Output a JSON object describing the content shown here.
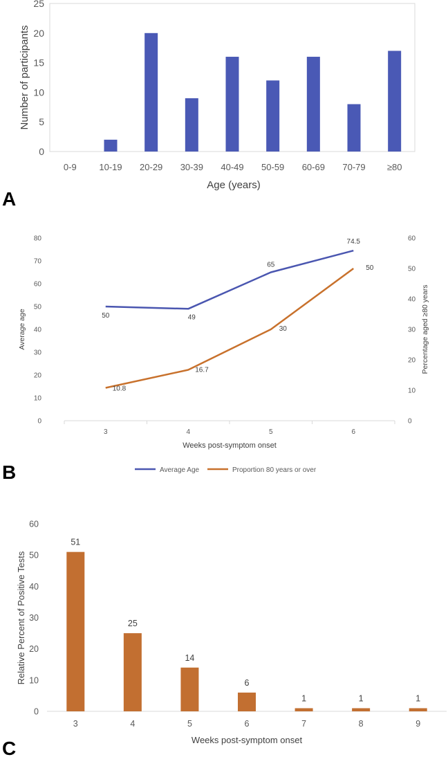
{
  "figure": {
    "panels": [
      "A",
      "B",
      "C"
    ]
  },
  "colors": {
    "bar_blue": "#4a59b5",
    "line_blue": "#4a56b0",
    "line_orange": "#c8712c",
    "bar_orange": "#c26f31",
    "grid": "#d9d9d9",
    "text": "#595959"
  },
  "chart_data": [
    {
      "id": "A",
      "type": "bar",
      "title": "",
      "categories": [
        "0-9",
        "10-19",
        "20-29",
        "30-39",
        "40-49",
        "50-59",
        "60-69",
        "70-79",
        "≥80"
      ],
      "values": [
        0,
        2,
        20,
        9,
        16,
        12,
        16,
        8,
        17
      ],
      "xlabel": "Age (years)",
      "ylabel": "Number of participants",
      "ylim": [
        0,
        25
      ],
      "yticks": [
        0,
        5,
        10,
        15,
        20,
        25
      ],
      "grid": false,
      "data_labels": false
    },
    {
      "id": "B",
      "type": "line",
      "title": "",
      "categories": [
        "3",
        "4",
        "5",
        "6"
      ],
      "xlabel": "Weeks post-symptom onset",
      "ylabel": "Average age",
      "y2label": "Percentage aged ≥80 years",
      "ylim": [
        0,
        80
      ],
      "yticks": [
        0,
        10,
        20,
        30,
        40,
        50,
        60,
        70,
        80
      ],
      "y2lim": [
        0,
        60
      ],
      "y2ticks": [
        0,
        10,
        20,
        30,
        40,
        50,
        60
      ],
      "grid": false,
      "legend_position": "bottom",
      "series": [
        {
          "name": "Average Age",
          "axis": "left",
          "values": [
            50,
            49,
            65,
            74.5
          ],
          "labels": [
            "50",
            "49",
            "65",
            "74.5"
          ]
        },
        {
          "name": "Proportion 80 years or over",
          "axis": "right",
          "values": [
            10.8,
            16.7,
            30,
            50
          ],
          "labels": [
            "10.8",
            "16.7",
            "30",
            "50"
          ]
        }
      ]
    },
    {
      "id": "C",
      "type": "bar",
      "title": "",
      "categories": [
        "3",
        "4",
        "5",
        "6",
        "7",
        "8",
        "9"
      ],
      "values": [
        51,
        25,
        14,
        6,
        1,
        1,
        1
      ],
      "xlabel": "Weeks post-symptom onset",
      "ylabel": "Relative Percent of Positive Tests",
      "ylim": [
        0,
        60
      ],
      "yticks": [
        0,
        10,
        20,
        30,
        40,
        50,
        60
      ],
      "grid": false,
      "data_labels": true
    }
  ]
}
